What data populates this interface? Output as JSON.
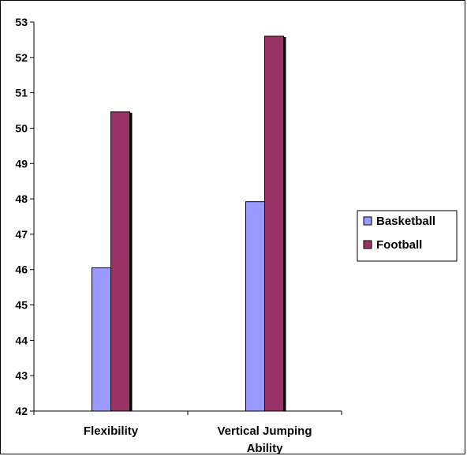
{
  "chart_data": {
    "type": "bar",
    "categories": [
      [
        "Flexibility"
      ],
      [
        "Vertical Jumping",
        "Ability"
      ]
    ],
    "series": [
      {
        "name": "Basketball",
        "values": [
          46.05,
          47.92
        ],
        "color": "#9999ff"
      },
      {
        "name": "Football",
        "values": [
          50.46,
          52.6
        ],
        "color": "#993366"
      }
    ],
    "ylim": [
      42,
      53
    ],
    "yticks": [
      42,
      43,
      44,
      45,
      46,
      47,
      48,
      49,
      50,
      51,
      52,
      53
    ],
    "title": "",
    "xlabel": "",
    "ylabel": "",
    "grid": false,
    "legend_position": "right"
  }
}
